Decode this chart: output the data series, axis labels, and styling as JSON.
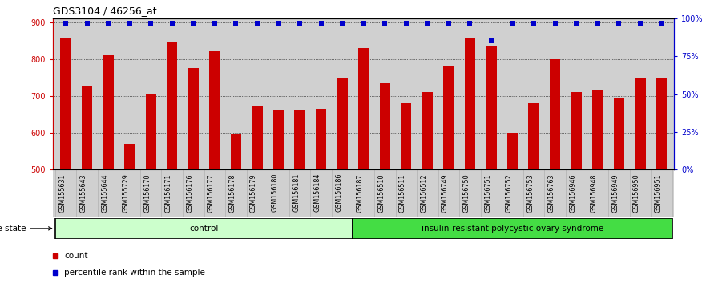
{
  "title": "GDS3104 / 46256_at",
  "categories": [
    "GSM155631",
    "GSM155643",
    "GSM155644",
    "GSM155729",
    "GSM156170",
    "GSM156171",
    "GSM156176",
    "GSM156177",
    "GSM156178",
    "GSM156179",
    "GSM156180",
    "GSM156181",
    "GSM156184",
    "GSM156186",
    "GSM156187",
    "GSM156510",
    "GSM156511",
    "GSM156512",
    "GSM156749",
    "GSM156750",
    "GSM156751",
    "GSM156752",
    "GSM156753",
    "GSM156763",
    "GSM156946",
    "GSM156948",
    "GSM156949",
    "GSM156950",
    "GSM156951"
  ],
  "bar_values": [
    855,
    725,
    810,
    570,
    706,
    848,
    775,
    822,
    598,
    675,
    660,
    660,
    665,
    750,
    830,
    735,
    680,
    710,
    783,
    855,
    835,
    600,
    680,
    800,
    710,
    715,
    695,
    750,
    747
  ],
  "percentile_values": [
    97,
    97,
    97,
    97,
    97,
    97,
    97,
    97,
    97,
    97,
    97,
    97,
    97,
    97,
    97,
    97,
    97,
    97,
    97,
    97,
    85,
    97,
    97,
    97,
    97,
    97,
    97,
    97,
    97
  ],
  "control_count": 14,
  "pcos_count": 15,
  "control_label": "control",
  "pcos_label": "insulin-resistant polycystic ovary syndrome",
  "control_color": "#ccffcc",
  "pcos_color": "#44dd44",
  "bar_color": "#cc0000",
  "percentile_color": "#0000cc",
  "ylim_left": [
    500,
    910
  ],
  "ylim_right": [
    0,
    100
  ],
  "yticks_left": [
    500,
    600,
    700,
    800,
    900
  ],
  "yticks_right": [
    0,
    25,
    50,
    75,
    100
  ],
  "ytick_right_labels": [
    "0%",
    "25%",
    "50%",
    "75%",
    "100%"
  ],
  "background_color": "#d0d0d0",
  "title_fontsize": 9,
  "tick_fontsize": 7,
  "bar_width": 0.5
}
